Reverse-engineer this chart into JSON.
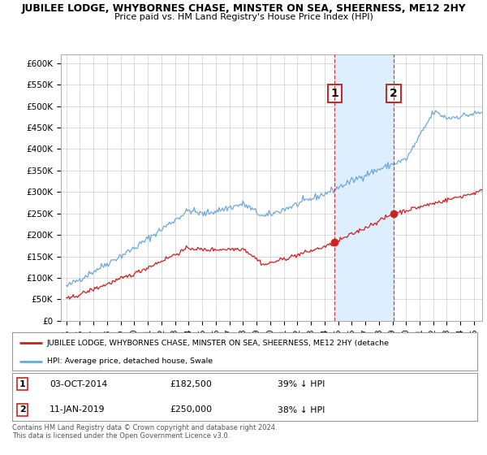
{
  "title": "JUBILEE LODGE, WHYBORNES CHASE, MINSTER ON SEA, SHEERNESS, ME12 2HY",
  "subtitle": "Price paid vs. HM Land Registry's House Price Index (HPI)",
  "ylabel_ticks": [
    "£0",
    "£50K",
    "£100K",
    "£150K",
    "£200K",
    "£250K",
    "£300K",
    "£350K",
    "£400K",
    "£450K",
    "£500K",
    "£550K",
    "£600K"
  ],
  "ytick_values": [
    0,
    50000,
    100000,
    150000,
    200000,
    250000,
    300000,
    350000,
    400000,
    450000,
    500000,
    550000,
    600000
  ],
  "hpi_color": "#6fa8d8",
  "price_color": "#cc2222",
  "sale1_year": 2014.75,
  "sale2_year": 2019.08,
  "marker1_price": 182500,
  "marker2_price": 250000,
  "legend_property": "JUBILEE LODGE, WHYBORNES CHASE, MINSTER ON SEA, SHEERNESS, ME12 2HY (detache",
  "legend_hpi": "HPI: Average price, detached house, Swale",
  "copyright_text": "Contains HM Land Registry data © Crown copyright and database right 2024.\nThis data is licensed under the Open Government Licence v3.0.",
  "background_color": "#ffffff",
  "plot_bg_color": "#ffffff",
  "shade_color": "#ddeeff",
  "xstart_year": 1995,
  "xend_year": 2025
}
